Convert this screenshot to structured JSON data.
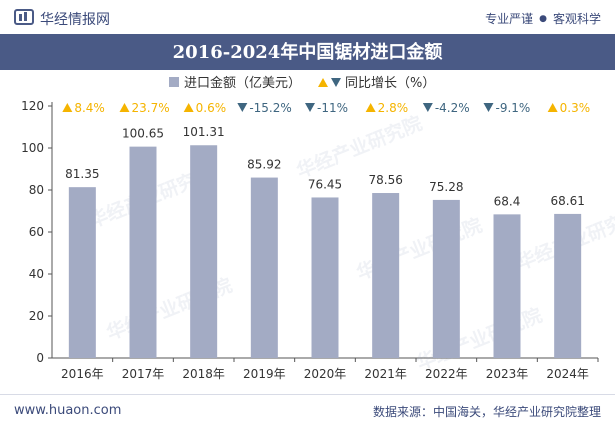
{
  "header": {
    "brand": "华经情报网",
    "slogan_left": "专业严谨",
    "slogan_sep": "●",
    "slogan_right": "客观科学"
  },
  "footer": {
    "url": "www.huaon.com",
    "source": "数据来源：中国海关，华经产业研究院整理"
  },
  "watermark": "华经产业研究院",
  "colors": {
    "bar": "#a3abc4",
    "up": "#f5b400",
    "down": "#3f6680",
    "header_bg": "#4a5a86"
  },
  "chart_data": {
    "type": "bar",
    "title": "2016-2024年中国锯材进口金额",
    "categories": [
      "2016年",
      "2017年",
      "2018年",
      "2019年",
      "2020年",
      "2021年",
      "2022年",
      "2023年",
      "2024年"
    ],
    "series": [
      {
        "name": "进口金额（亿美元）",
        "values": [
          81.35,
          100.65,
          101.31,
          85.92,
          76.45,
          78.56,
          75.28,
          68.4,
          68.61
        ],
        "data_labels": [
          "81.35",
          "100.65",
          "101.31",
          "85.92",
          "76.45",
          "78.56",
          "75.28",
          "68.4",
          "68.61"
        ]
      },
      {
        "name": "同比增长（%）",
        "values": [
          8.4,
          23.7,
          0.6,
          -15.2,
          -11,
          2.8,
          -4.2,
          -9.1,
          0.3
        ],
        "data_labels": [
          "8.4%",
          "23.7%",
          "0.6%",
          "-15.2%",
          "-11%",
          "2.8%",
          "-4.2%",
          "-9.1%",
          "0.3%"
        ]
      }
    ],
    "ylim": [
      0,
      120
    ],
    "yticks": [
      "0",
      "20",
      "40",
      "60",
      "80",
      "100",
      "120"
    ],
    "legend_position": "top-center",
    "grid": false
  }
}
